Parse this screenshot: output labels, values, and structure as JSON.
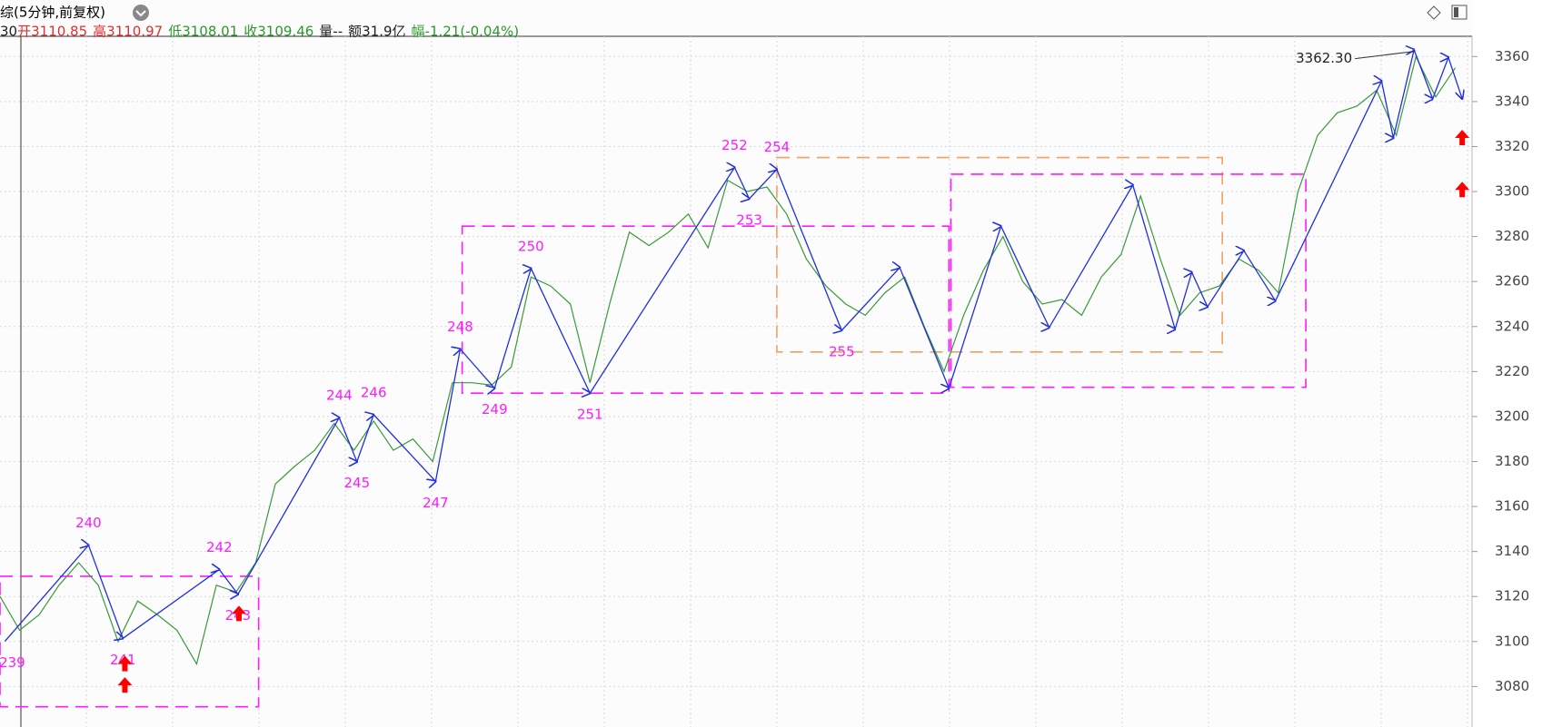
{
  "header": {
    "title": "综(5分钟,前复权)",
    "info": [
      {
        "text": "30",
        "color": "#222222"
      },
      {
        "text": "开",
        "color": "#e03030"
      },
      {
        "text": "3110.85",
        "color": "#e03030"
      },
      {
        "text": "高",
        "color": "#e03030"
      },
      {
        "text": "3110.97",
        "color": "#e03030"
      },
      {
        "text": "低",
        "color": "#2a9a2a"
      },
      {
        "text": "3108.01",
        "color": "#2a9a2a"
      },
      {
        "text": "收",
        "color": "#2a9a2a"
      },
      {
        "text": "3109.46",
        "color": "#2a9a2a"
      },
      {
        "text": "量--",
        "color": "#222222"
      },
      {
        "text": "额31.9亿",
        "color": "#222222"
      },
      {
        "text": "幅",
        "color": "#2a9a2a"
      },
      {
        "text": "-1.21(-0.04%)",
        "color": "#2a9a2a"
      }
    ]
  },
  "chart_data": {
    "type": "line",
    "xlim": [
      0,
      1497
    ],
    "ylim": [
      3062,
      3369
    ],
    "yticks": [
      3080,
      3100,
      3120,
      3140,
      3160,
      3180,
      3200,
      3220,
      3240,
      3260,
      3280,
      3300,
      3320,
      3340,
      3360
    ],
    "grid": true,
    "price": {
      "color": "#3a9a3a",
      "x": [
        0,
        20,
        40,
        60,
        80,
        100,
        120,
        140,
        160,
        180,
        200,
        220,
        240,
        260,
        280,
        300,
        320,
        340,
        360,
        380,
        400,
        420,
        440,
        460,
        480,
        500,
        520,
        540,
        560,
        580,
        600,
        620,
        640,
        660,
        680,
        700,
        720,
        740,
        760,
        780,
        800,
        820,
        840,
        860,
        880,
        900,
        920,
        940,
        960,
        980,
        1000,
        1020,
        1040,
        1060,
        1080,
        1100,
        1120,
        1140,
        1160,
        1180,
        1200,
        1220,
        1240,
        1260,
        1280,
        1300,
        1320,
        1340,
        1360,
        1380,
        1400,
        1420,
        1440,
        1460,
        1480
      ],
      "values": [
        3120,
        3105,
        3112,
        3125,
        3135,
        3125,
        3100,
        3118,
        3112,
        3105,
        3090,
        3125,
        3122,
        3135,
        3170,
        3178,
        3185,
        3197,
        3185,
        3198,
        3185,
        3190,
        3180,
        3215,
        3215,
        3214,
        3222,
        3262,
        3258,
        3250,
        3215,
        3250,
        3282,
        3276,
        3282,
        3290,
        3275,
        3305,
        3300,
        3302,
        3290,
        3270,
        3258,
        3250,
        3245,
        3255,
        3262,
        3240,
        3220,
        3245,
        3265,
        3280,
        3260,
        3250,
        3252,
        3245,
        3262,
        3272,
        3298,
        3270,
        3245,
        3255,
        3258,
        3270,
        3265,
        3255,
        3300,
        3325,
        3335,
        3338,
        3345,
        3325,
        3360,
        3342,
        3355
      ]
    },
    "zigzag": {
      "color": "#1f2fe0",
      "x": [
        5,
        90,
        125,
        223,
        242,
        345,
        363,
        380,
        443,
        468,
        503,
        540,
        600,
        747,
        762,
        790,
        856,
        915,
        965,
        1018,
        1067,
        1152,
        1195,
        1212,
        1228,
        1265,
        1297,
        1405,
        1417,
        1438,
        1457,
        1473,
        1487
      ],
      "values": [
        3100.1,
        3142.8,
        3101.4,
        3132.0,
        3121.0,
        3199.5,
        3179.9,
        3200.8,
        3171.2,
        3230.0,
        3212.6,
        3265.8,
        3210.4,
        3310.7,
        3296.8,
        3309.8,
        3238.3,
        3266.2,
        3212.6,
        3284.6,
        3239.6,
        3302.9,
        3238.8,
        3264.1,
        3248.8,
        3273.7,
        3251.4,
        3349.1,
        3323.8,
        3363.0,
        3341.2,
        3359.6,
        3341.2
      ],
      "labels": [
        "239",
        "240",
        "241",
        "242",
        "243",
        "244",
        "245",
        "246",
        "247",
        "248",
        "249",
        "250",
        "251",
        "252",
        "253",
        "254",
        "255",
        null,
        null,
        null,
        null,
        null,
        null,
        null,
        null,
        null,
        null,
        null,
        null,
        null,
        null,
        null,
        null
      ],
      "label_color": "#ff1aff"
    },
    "max_label": {
      "x": 1438,
      "value": 3362.3,
      "label": "3362.30"
    },
    "boxes": [
      {
        "x1": 0,
        "x2": 263,
        "y1": 3071,
        "y2": 3129,
        "color": "#ff1aff"
      },
      {
        "x1": 470,
        "x2": 965,
        "y1": 3210.4,
        "y2": 3284.6,
        "color": "#ff1aff"
      },
      {
        "x1": 790,
        "x2": 1243,
        "y1": 3228.7,
        "y2": 3315.1,
        "color": "#f0a060"
      },
      {
        "x1": 967,
        "x2": 1328,
        "y1": 3213.0,
        "y2": 3307.7,
        "color": "#ff1aff"
      }
    ],
    "signals": {
      "color": "#ff0000",
      "x": [
        127,
        127,
        243,
        1487,
        1487
      ],
      "values": [
        3090,
        3080.5,
        3112.3,
        3323.8,
        3300.7
      ]
    }
  }
}
